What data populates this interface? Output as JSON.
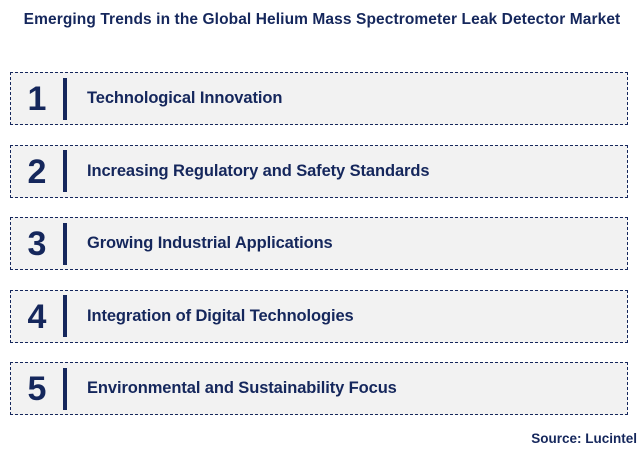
{
  "title": "Emerging Trends in the Global Helium Mass Spectrometer Leak Detector Market",
  "source": "Source: Lucintel",
  "colors": {
    "navy": "#15275c",
    "box_bg": "#f2f2f2",
    "page_bg": "#ffffff"
  },
  "trends": [
    {
      "number": "1",
      "label": "Technological Innovation"
    },
    {
      "number": "2",
      "label": "Increasing Regulatory and Safety Standards"
    },
    {
      "number": "3",
      "label": "Growing Industrial Applications"
    },
    {
      "number": "4",
      "label": "Integration of Digital Technologies"
    },
    {
      "number": "5",
      "label": "Environmental and Sustainability Focus"
    }
  ]
}
